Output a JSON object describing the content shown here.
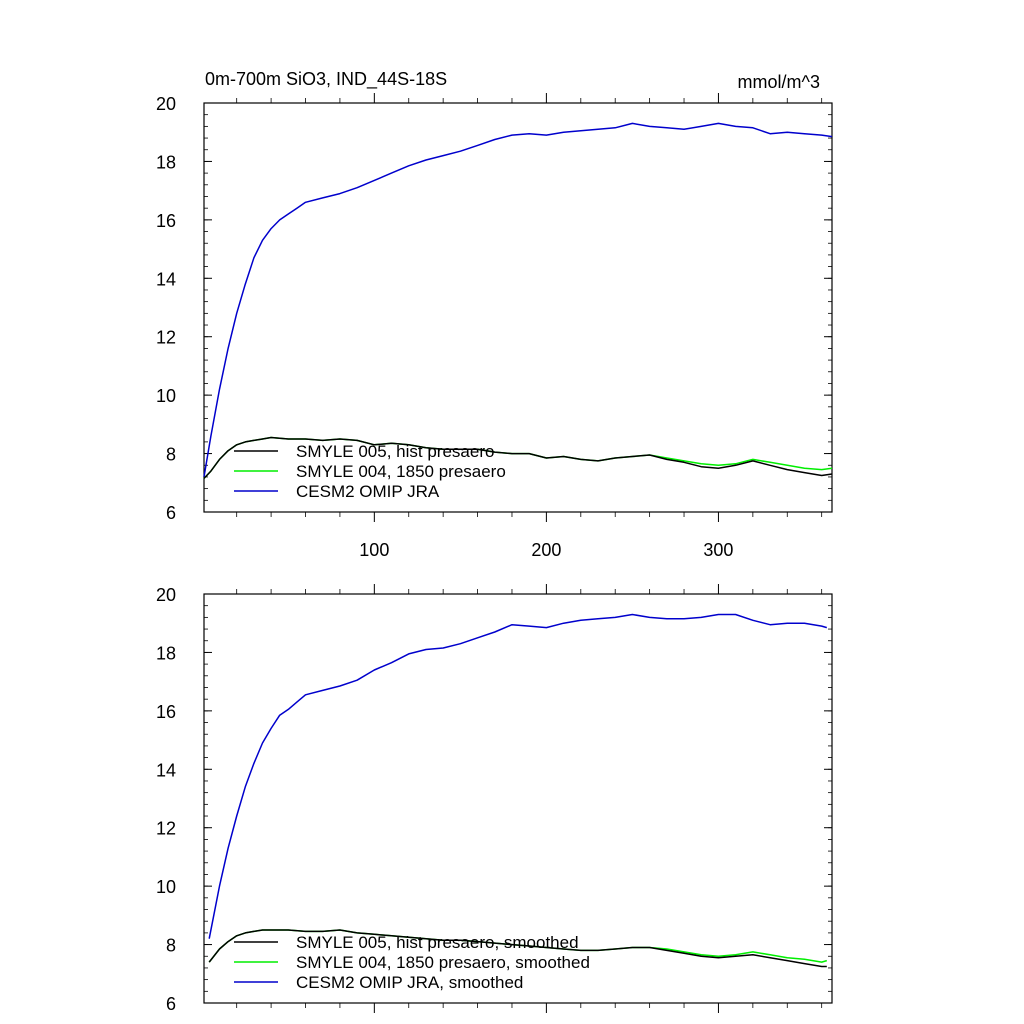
{
  "chart_data": [
    {
      "type": "line",
      "title": "0m-700m SiO3, IND_44S-18S",
      "units": "mmol/m^3",
      "xlim": [
        1,
        366
      ],
      "ylim": [
        6,
        20
      ],
      "yticks": [
        6,
        8,
        10,
        12,
        14,
        16,
        18,
        20
      ],
      "xticks": [
        100,
        200,
        300
      ],
      "x_tick_labels_shown": true,
      "grid": false,
      "legend_position": "bottom-left",
      "series": [
        {
          "name": "SMYLE 005, hist presaero",
          "color": "#000000",
          "x": [
            1,
            5,
            10,
            15,
            20,
            25,
            30,
            35,
            40,
            50,
            60,
            70,
            80,
            90,
            100,
            110,
            120,
            130,
            140,
            150,
            160,
            170,
            180,
            190,
            200,
            210,
            220,
            230,
            240,
            250,
            260,
            270,
            280,
            290,
            300,
            310,
            320,
            330,
            340,
            350,
            360,
            366
          ],
          "y": [
            7.15,
            7.4,
            7.8,
            8.1,
            8.3,
            8.4,
            8.45,
            8.5,
            8.55,
            8.5,
            8.5,
            8.45,
            8.5,
            8.45,
            8.3,
            8.35,
            8.3,
            8.2,
            8.15,
            8.15,
            8.15,
            8.05,
            8.0,
            8.0,
            7.85,
            7.9,
            7.8,
            7.75,
            7.85,
            7.9,
            7.95,
            7.8,
            7.7,
            7.55,
            7.5,
            7.6,
            7.75,
            7.6,
            7.45,
            7.35,
            7.25,
            7.3
          ]
        },
        {
          "name": "SMYLE 004, 1850 presaero",
          "color": "#00ee00",
          "x": [
            1,
            5,
            10,
            15,
            20,
            25,
            30,
            35,
            40,
            50,
            60,
            70,
            80,
            90,
            100,
            110,
            120,
            130,
            140,
            150,
            160,
            170,
            180,
            190,
            200,
            210,
            220,
            230,
            240,
            250,
            260,
            270,
            280,
            290,
            300,
            310,
            320,
            330,
            340,
            350,
            360,
            366
          ],
          "y": [
            7.15,
            7.4,
            7.8,
            8.1,
            8.3,
            8.4,
            8.45,
            8.5,
            8.55,
            8.5,
            8.5,
            8.45,
            8.5,
            8.45,
            8.3,
            8.35,
            8.3,
            8.2,
            8.15,
            8.15,
            8.15,
            8.05,
            8.0,
            8.0,
            7.85,
            7.9,
            7.8,
            7.75,
            7.85,
            7.9,
            7.95,
            7.85,
            7.75,
            7.65,
            7.6,
            7.65,
            7.8,
            7.7,
            7.6,
            7.5,
            7.45,
            7.5
          ]
        },
        {
          "name": "CESM2 OMIP JRA",
          "color": "#0000cc",
          "x": [
            1,
            5,
            10,
            15,
            20,
            25,
            30,
            35,
            40,
            45,
            50,
            55,
            60,
            70,
            80,
            90,
            100,
            110,
            120,
            130,
            140,
            150,
            160,
            170,
            180,
            190,
            200,
            210,
            220,
            230,
            240,
            250,
            260,
            270,
            280,
            290,
            300,
            310,
            320,
            330,
            340,
            350,
            360,
            366
          ],
          "y": [
            7.2,
            8.6,
            10.2,
            11.6,
            12.8,
            13.8,
            14.7,
            15.3,
            15.7,
            16.0,
            16.2,
            16.4,
            16.6,
            16.75,
            16.9,
            17.1,
            17.35,
            17.6,
            17.85,
            18.05,
            18.2,
            18.35,
            18.55,
            18.75,
            18.9,
            18.95,
            18.9,
            19.0,
            19.05,
            19.1,
            19.15,
            19.3,
            19.2,
            19.15,
            19.1,
            19.2,
            19.3,
            19.2,
            19.15,
            18.95,
            19.0,
            18.95,
            18.9,
            18.85
          ]
        }
      ]
    },
    {
      "type": "line",
      "xlim": [
        1,
        366
      ],
      "ylim": [
        6,
        20
      ],
      "yticks": [
        6,
        8,
        10,
        12,
        14,
        16,
        18,
        20
      ],
      "xticks": [
        100,
        200,
        300
      ],
      "x_tick_labels_shown": false,
      "grid": false,
      "legend_position": "bottom-left",
      "series": [
        {
          "name": "SMYLE 005, hist presaero, smoothed",
          "color": "#000000",
          "x": [
            4,
            10,
            15,
            20,
            25,
            30,
            35,
            40,
            50,
            60,
            70,
            80,
            90,
            100,
            110,
            120,
            130,
            140,
            150,
            160,
            170,
            180,
            190,
            200,
            210,
            220,
            230,
            240,
            250,
            260,
            270,
            280,
            290,
            300,
            310,
            320,
            330,
            340,
            350,
            360,
            363
          ],
          "y": [
            7.4,
            7.85,
            8.1,
            8.3,
            8.4,
            8.45,
            8.5,
            8.5,
            8.5,
            8.45,
            8.45,
            8.5,
            8.4,
            8.35,
            8.3,
            8.25,
            8.2,
            8.15,
            8.15,
            8.1,
            8.05,
            8.0,
            7.95,
            7.9,
            7.85,
            7.8,
            7.8,
            7.85,
            7.9,
            7.9,
            7.8,
            7.7,
            7.6,
            7.55,
            7.6,
            7.65,
            7.55,
            7.45,
            7.35,
            7.25,
            7.25
          ]
        },
        {
          "name": "SMYLE 004, 1850 presaero, smoothed",
          "color": "#00ee00",
          "x": [
            4,
            10,
            15,
            20,
            25,
            30,
            35,
            40,
            50,
            60,
            70,
            80,
            90,
            100,
            110,
            120,
            130,
            140,
            150,
            160,
            170,
            180,
            190,
            200,
            210,
            220,
            230,
            240,
            250,
            260,
            270,
            280,
            290,
            300,
            310,
            320,
            330,
            340,
            350,
            360,
            363
          ],
          "y": [
            7.4,
            7.85,
            8.1,
            8.3,
            8.4,
            8.45,
            8.5,
            8.5,
            8.5,
            8.45,
            8.45,
            8.5,
            8.4,
            8.35,
            8.3,
            8.25,
            8.2,
            8.15,
            8.15,
            8.1,
            8.05,
            8.0,
            7.95,
            7.9,
            7.85,
            7.8,
            7.8,
            7.85,
            7.9,
            7.9,
            7.85,
            7.75,
            7.65,
            7.6,
            7.65,
            7.75,
            7.65,
            7.55,
            7.5,
            7.4,
            7.45
          ]
        },
        {
          "name": "CESM2 OMIP JRA, smoothed",
          "color": "#0000cc",
          "x": [
            4,
            10,
            15,
            20,
            25,
            30,
            35,
            40,
            45,
            50,
            55,
            60,
            70,
            80,
            90,
            100,
            110,
            120,
            130,
            140,
            150,
            160,
            170,
            180,
            190,
            200,
            210,
            220,
            230,
            240,
            250,
            260,
            270,
            280,
            290,
            300,
            310,
            320,
            330,
            340,
            350,
            360,
            363
          ],
          "y": [
            8.2,
            10.0,
            11.3,
            12.4,
            13.4,
            14.2,
            14.9,
            15.4,
            15.85,
            16.05,
            16.3,
            16.55,
            16.7,
            16.85,
            17.05,
            17.4,
            17.65,
            17.95,
            18.1,
            18.15,
            18.3,
            18.5,
            18.7,
            18.95,
            18.9,
            18.85,
            19.0,
            19.1,
            19.15,
            19.2,
            19.3,
            19.2,
            19.15,
            19.15,
            19.2,
            19.3,
            19.3,
            19.1,
            18.95,
            19.0,
            19.0,
            18.9,
            18.85
          ]
        }
      ]
    }
  ]
}
